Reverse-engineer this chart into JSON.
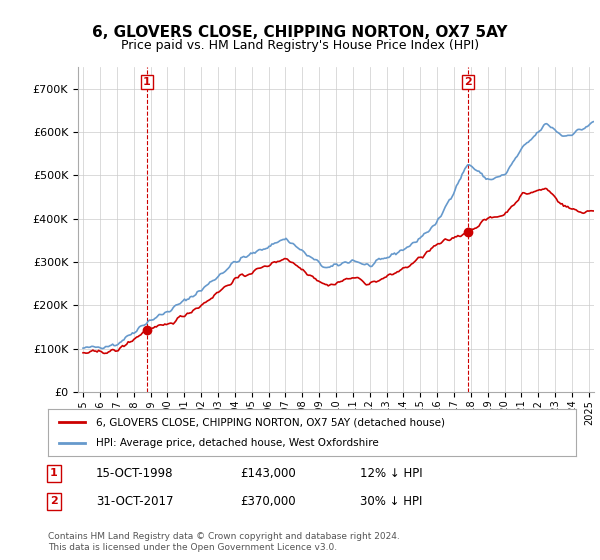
{
  "title": "6, GLOVERS CLOSE, CHIPPING NORTON, OX7 5AY",
  "subtitle": "Price paid vs. HM Land Registry's House Price Index (HPI)",
  "legend_line1": "6, GLOVERS CLOSE, CHIPPING NORTON, OX7 5AY (detached house)",
  "legend_line2": "HPI: Average price, detached house, West Oxfordshire",
  "sale1_label": "1",
  "sale1_date": "15-OCT-1998",
  "sale1_price": "£143,000",
  "sale1_hpi": "12% ↓ HPI",
  "sale1_year": 1998.79,
  "sale1_value": 143000,
  "sale2_label": "2",
  "sale2_date": "31-OCT-2017",
  "sale2_price": "£370,000",
  "sale2_hpi": "30% ↓ HPI",
  "sale2_year": 2017.83,
  "sale2_value": 370000,
  "hpi_color": "#6699cc",
  "price_color": "#cc0000",
  "marker_color": "#cc0000",
  "vline_color": "#cc0000",
  "grid_color": "#cccccc",
  "background_color": "#ffffff",
  "footer": "Contains HM Land Registry data © Crown copyright and database right 2024.\nThis data is licensed under the Open Government Licence v3.0.",
  "ylim": [
    0,
    750000
  ],
  "yticks": [
    0,
    100000,
    200000,
    300000,
    400000,
    500000,
    600000,
    700000
  ],
  "start_year": 1995,
  "end_year": 2025
}
